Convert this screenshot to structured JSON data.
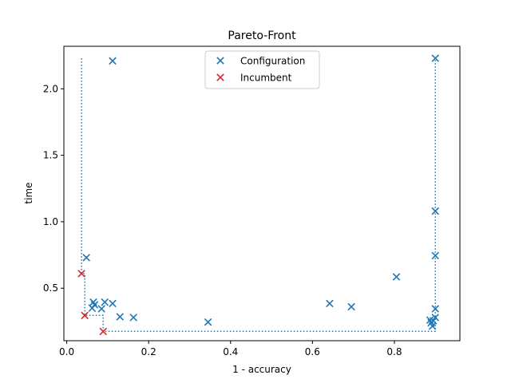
{
  "chart_data": {
    "type": "scatter",
    "title": "Pareto-Front",
    "xlabel": "1 - accuracy",
    "ylabel": "time",
    "xlim": [
      -0.007,
      0.96
    ],
    "ylim": [
      0.105,
      2.32
    ],
    "xticks": [
      0.0,
      0.2,
      0.4,
      0.6,
      0.8
    ],
    "xtick_labels": [
      "0.0",
      "0.2",
      "0.4",
      "0.6",
      "0.8"
    ],
    "yticks": [
      0.5,
      1.0,
      1.5,
      2.0
    ],
    "ytick_labels": [
      "0.5",
      "1.0",
      "1.5",
      "2.0"
    ],
    "grid": false,
    "legend_position": "upper center",
    "series": [
      {
        "name": "Configuration",
        "color": "#1f77b4",
        "marker": "x",
        "points": [
          [
            0.112,
            2.21
          ],
          [
            0.9,
            2.23
          ],
          [
            0.9,
            1.08
          ],
          [
            0.9,
            0.745
          ],
          [
            0.048,
            0.73
          ],
          [
            0.805,
            0.585
          ],
          [
            0.642,
            0.385
          ],
          [
            0.695,
            0.36
          ],
          [
            0.9,
            0.345
          ],
          [
            0.065,
            0.395
          ],
          [
            0.068,
            0.375
          ],
          [
            0.062,
            0.35
          ],
          [
            0.093,
            0.395
          ],
          [
            0.112,
            0.385
          ],
          [
            0.085,
            0.345
          ],
          [
            0.13,
            0.285
          ],
          [
            0.163,
            0.28
          ],
          [
            0.345,
            0.245
          ],
          [
            0.9,
            0.28
          ],
          [
            0.895,
            0.255
          ],
          [
            0.89,
            0.24
          ],
          [
            0.893,
            0.215
          ],
          [
            0.887,
            0.26
          ]
        ]
      },
      {
        "name": "Incumbent",
        "color": "#d62728",
        "marker": "x",
        "points": [
          [
            0.036,
            0.61
          ],
          [
            0.044,
            0.295
          ],
          [
            0.089,
            0.175
          ]
        ]
      }
    ],
    "pareto_line": {
      "color": "#1f77b4",
      "style": "dotted",
      "points": [
        [
          0.036,
          2.23
        ],
        [
          0.036,
          0.61
        ],
        [
          0.044,
          0.61
        ],
        [
          0.044,
          0.295
        ],
        [
          0.089,
          0.295
        ],
        [
          0.089,
          0.175
        ],
        [
          0.9,
          0.175
        ],
        [
          0.9,
          2.23
        ]
      ]
    }
  }
}
